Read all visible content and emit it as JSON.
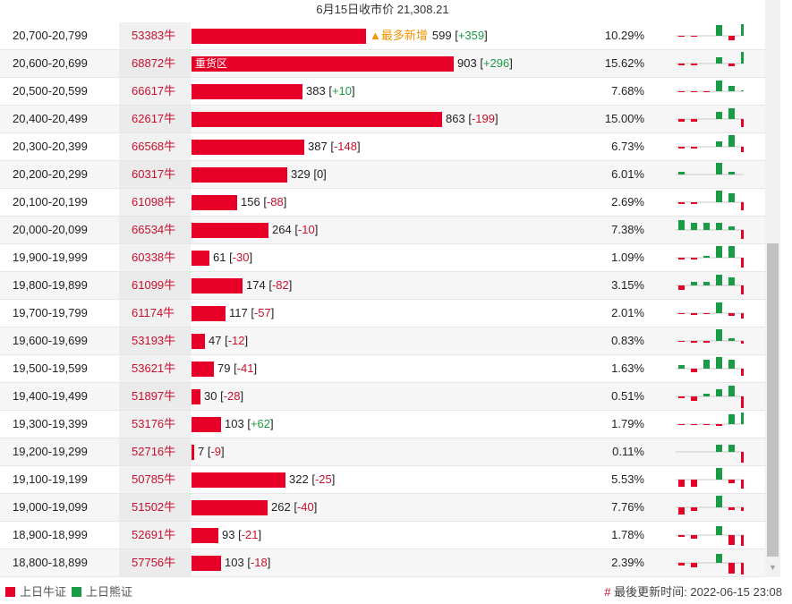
{
  "header": {
    "title": "6月15日收市价 21,308.21"
  },
  "rows": [
    {
      "range": "20,700-20,799",
      "price": "53383牛",
      "bar": 0.664,
      "tag": "",
      "hot": "▲最多新增",
      "count": "599",
      "change": "+359",
      "sign": "pos",
      "pct": "10.29%",
      "spark": [
        -1,
        -1,
        0,
        12,
        -5,
        14
      ]
    },
    {
      "range": "20,600-20,699",
      "price": "68872牛",
      "bar": 1.0,
      "tag": "重货区",
      "hot": "",
      "count": "903",
      "change": "+296",
      "sign": "pos",
      "pct": "15.62%",
      "spark": [
        -2,
        -2,
        0,
        7,
        -3,
        14
      ]
    },
    {
      "range": "20,500-20,599",
      "price": "66617牛",
      "bar": 0.424,
      "tag": "",
      "hot": "",
      "count": "383",
      "change": "+10",
      "sign": "pos",
      "pct": "7.68%",
      "spark": [
        -1,
        -1,
        -1,
        12,
        6,
        1
      ]
    },
    {
      "range": "20,400-20,499",
      "price": "62617牛",
      "bar": 0.956,
      "tag": "",
      "hot": "",
      "count": "863",
      "change": "-199",
      "sign": "neg",
      "pct": "15.00%",
      "spark": [
        -3,
        -3,
        0,
        8,
        12,
        -9
      ]
    },
    {
      "range": "20,300-20,399",
      "price": "66568牛",
      "bar": 0.429,
      "tag": "",
      "hot": "",
      "count": "387",
      "change": "-148",
      "sign": "neg",
      "pct": "6.73%",
      "spark": [
        -2,
        -2,
        0,
        6,
        14,
        -6
      ]
    },
    {
      "range": "20,200-20,299",
      "price": "60317牛",
      "bar": 0.364,
      "tag": "",
      "hot": "",
      "count": "329",
      "change": "0",
      "sign": "zero",
      "pct": "6.01%",
      "spark": [
        3,
        0,
        0,
        13,
        3,
        0
      ]
    },
    {
      "range": "20,100-20,199",
      "price": "61098牛",
      "bar": 0.173,
      "tag": "",
      "hot": "",
      "count": "156",
      "change": "-88",
      "sign": "neg",
      "pct": "2.69%",
      "spark": [
        -2,
        -2,
        0,
        13,
        10,
        -9
      ]
    },
    {
      "range": "20,000-20,099",
      "price": "66534牛",
      "bar": 0.292,
      "tag": "",
      "hot": "",
      "count": "264",
      "change": "-10",
      "sign": "neg",
      "pct": "7.38%",
      "spark": [
        11,
        8,
        8,
        8,
        4,
        -10
      ]
    },
    {
      "range": "19,900-19,999",
      "price": "60338牛",
      "bar": 0.068,
      "tag": "",
      "hot": "",
      "count": "61",
      "change": "-30",
      "sign": "neg",
      "pct": "1.09%",
      "spark": [
        -2,
        -2,
        2,
        13,
        13,
        -11
      ]
    },
    {
      "range": "19,800-19,899",
      "price": "61099牛",
      "bar": 0.193,
      "tag": "",
      "hot": "",
      "count": "174",
      "change": "-82",
      "sign": "neg",
      "pct": "3.15%",
      "spark": [
        -5,
        4,
        4,
        12,
        9,
        -10
      ]
    },
    {
      "range": "19,700-19,799",
      "price": "61174牛",
      "bar": 0.13,
      "tag": "",
      "hot": "",
      "count": "117",
      "change": "-57",
      "sign": "neg",
      "pct": "2.01%",
      "spark": [
        -1,
        -2,
        -1,
        12,
        -3,
        -6
      ]
    },
    {
      "range": "19,600-19,699",
      "price": "53193牛",
      "bar": 0.052,
      "tag": "",
      "hot": "",
      "count": "47",
      "change": "-12",
      "sign": "neg",
      "pct": "0.83%",
      "spark": [
        -1,
        -2,
        -2,
        13,
        3,
        -3
      ]
    },
    {
      "range": "19,500-19,599",
      "price": "53621牛",
      "bar": 0.087,
      "tag": "",
      "hot": "",
      "count": "79",
      "change": "-41",
      "sign": "neg",
      "pct": "1.63%",
      "spark": [
        4,
        -4,
        10,
        13,
        10,
        -8
      ]
    },
    {
      "range": "19,400-19,499",
      "price": "51897牛",
      "bar": 0.033,
      "tag": "",
      "hot": "",
      "count": "30",
      "change": "-28",
      "sign": "neg",
      "pct": "0.51%",
      "spark": [
        -2,
        -5,
        3,
        8,
        12,
        -14
      ]
    },
    {
      "range": "19,300-19,399",
      "price": "53176牛",
      "bar": 0.114,
      "tag": "",
      "hot": "",
      "count": "103",
      "change": "+62",
      "sign": "pos",
      "pct": "1.79%",
      "spark": [
        -1,
        -1,
        -1,
        -2,
        11,
        14
      ]
    },
    {
      "range": "19,200-19,299",
      "price": "52716牛",
      "bar": 0.008,
      "tag": "",
      "hot": "",
      "count": "7",
      "change": "-9",
      "sign": "neg",
      "pct": "0.11%",
      "spark": [
        0,
        0,
        0,
        8,
        8,
        -12
      ]
    },
    {
      "range": "19,100-19,199",
      "price": "50785牛",
      "bar": 0.357,
      "tag": "",
      "hot": "",
      "count": "322",
      "change": "-25",
      "sign": "neg",
      "pct": "5.53%",
      "spark": [
        -8,
        -8,
        0,
        13,
        -4,
        -10
      ]
    },
    {
      "range": "19,000-19,099",
      "price": "51502牛",
      "bar": 0.29,
      "tag": "",
      "hot": "",
      "count": "262",
      "change": "-40",
      "sign": "neg",
      "pct": "7.76%",
      "spark": [
        -8,
        -4,
        0,
        13,
        -3,
        -4
      ]
    },
    {
      "range": "18,900-18,999",
      "price": "52691牛",
      "bar": 0.103,
      "tag": "",
      "hot": "",
      "count": "93",
      "change": "-21",
      "sign": "neg",
      "pct": "1.78%",
      "spark": [
        -2,
        -4,
        0,
        10,
        -11,
        -12
      ]
    },
    {
      "range": "18,800-18,899",
      "price": "57756牛",
      "bar": 0.114,
      "tag": "",
      "hot": "",
      "count": "103",
      "change": "-18",
      "sign": "neg",
      "pct": "2.39%",
      "spark": [
        -3,
        -5,
        0,
        10,
        -12,
        -13
      ]
    }
  ],
  "footer": {
    "legend_bull": "上日牛证",
    "legend_bear": "上日熊证",
    "update_hash": "#",
    "update_text": "最後更新时间: 2022-06-15 23:08"
  },
  "colors": {
    "bull": "#e60028",
    "bear": "#1a9b45",
    "price_text": "#c8102e",
    "hot": "#f29500"
  },
  "icons": {
    "scroll_down": "triangle-down-icon"
  }
}
